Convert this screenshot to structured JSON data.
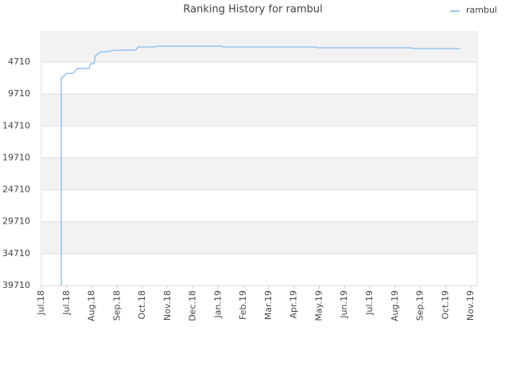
{
  "chart_data": {
    "type": "line",
    "title": "Ranking History for rambul",
    "x": [
      0.79,
      0.79,
      0.79,
      0.88,
      1.01,
      1.26,
      1.42,
      1.89,
      1.95,
      2.08,
      2.14,
      2.27,
      2.36,
      2.64,
      2.71,
      2.93,
      3.72,
      3.84,
      4.5,
      4.57,
      7.12,
      7.18,
      10.86,
      10.93,
      14.64,
      14.7,
      16.56
    ],
    "series": [
      {
        "name": "rambul",
        "color": "#7cb5ec",
        "values": [
          39710,
          10960,
          7210,
          6960,
          6460,
          6460,
          5710,
          5710,
          4960,
          4960,
          3710,
          3335,
          3085,
          3085,
          2960,
          2835,
          2835,
          2335,
          2335,
          2210,
          2210,
          2335,
          2335,
          2460,
          2460,
          2585,
          2585
        ]
      }
    ],
    "ylim": [
      -40,
      39710
    ],
    "y_inverted": true,
    "yticks": [
      4710,
      9710,
      14710,
      19710,
      24710,
      29710,
      34710,
      39710
    ],
    "xlim": [
      0,
      17.25
    ],
    "xticks": [
      {
        "value": 0,
        "label": "Jul.18"
      },
      {
        "value": 1,
        "label": "Jul.18"
      },
      {
        "value": 2,
        "label": "Aug.18"
      },
      {
        "value": 3,
        "label": "Sep.18"
      },
      {
        "value": 4,
        "label": "Oct.18"
      },
      {
        "value": 5,
        "label": "Nov.18"
      },
      {
        "value": 6,
        "label": "Dec.18"
      },
      {
        "value": 7,
        "label": "Jan.19"
      },
      {
        "value": 8,
        "label": "Feb.19"
      },
      {
        "value": 9,
        "label": "Mar.19"
      },
      {
        "value": 10,
        "label": "Apr.19"
      },
      {
        "value": 11,
        "label": "May.19"
      },
      {
        "value": 12,
        "label": "Jun.19"
      },
      {
        "value": 13,
        "label": "Jul.19"
      },
      {
        "value": 14,
        "label": "Aug.19"
      },
      {
        "value": 15,
        "label": "Sep.19"
      },
      {
        "value": 16,
        "label": "Oct.19"
      },
      {
        "value": 17,
        "label": "Nov.19"
      }
    ],
    "grid": true,
    "legend": "top-right"
  }
}
